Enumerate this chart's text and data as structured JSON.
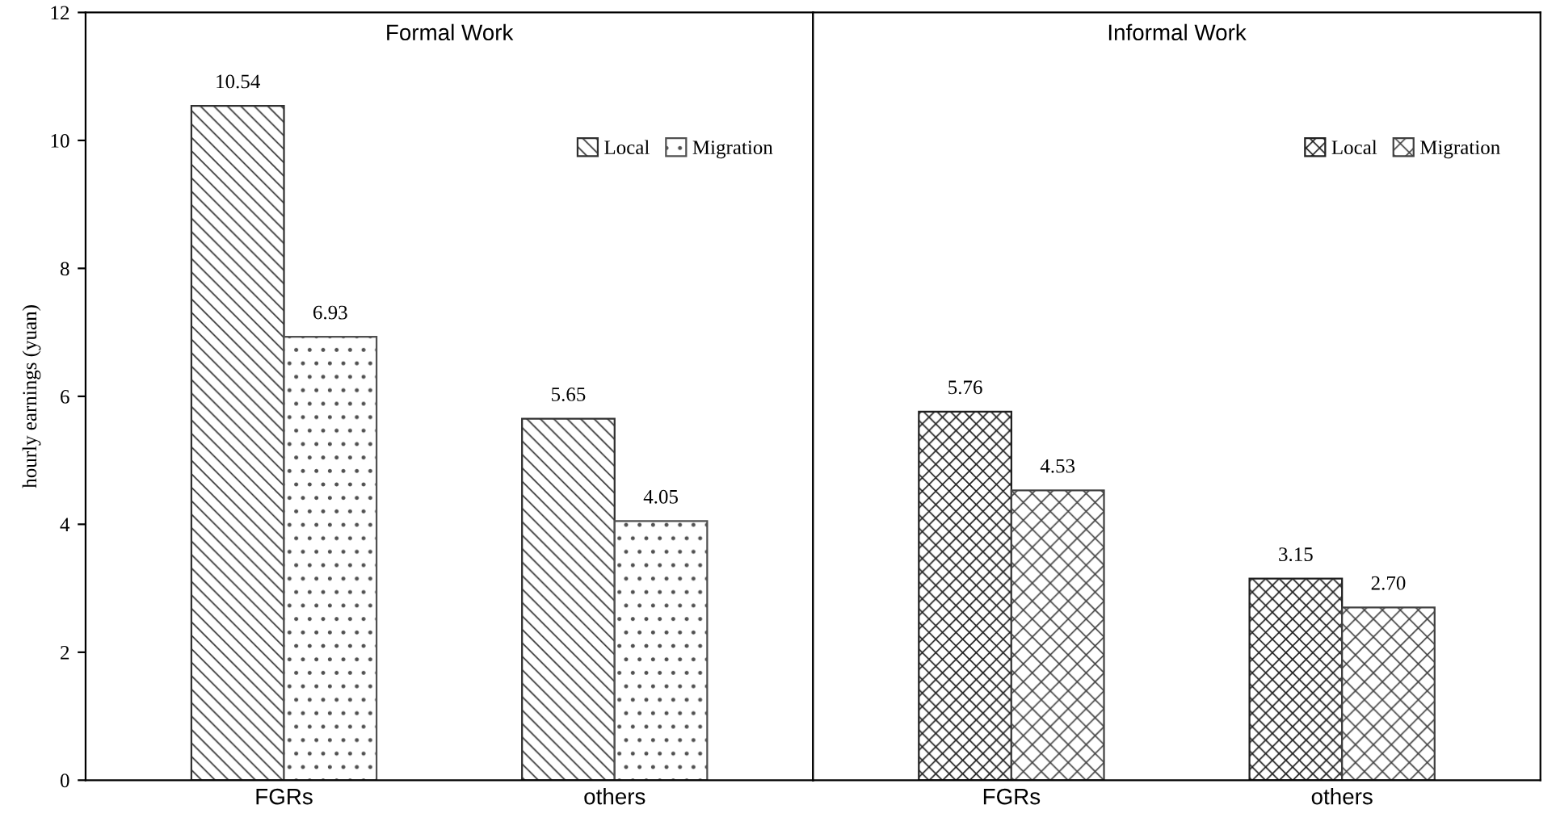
{
  "chart_data": [
    {
      "type": "bar",
      "title": "Formal Work",
      "ylabel": "hourly earnings (yuan)",
      "categories": [
        "FGRs",
        "others"
      ],
      "ylim": [
        0,
        12
      ],
      "yticks": [
        0,
        2,
        4,
        6,
        8,
        10,
        12
      ],
      "legend": "top right",
      "grid": false,
      "series": [
        {
          "name": "Local",
          "color": "#303030",
          "values": [
            10.54,
            5.65
          ],
          "value_labels": [
            "10.54",
            "5.65"
          ]
        },
        {
          "name": "Migration",
          "color": "#505050",
          "values": [
            6.93,
            4.05
          ],
          "value_labels": [
            "6.93",
            "4.05"
          ]
        }
      ]
    },
    {
      "type": "bar",
      "title": "Informal Work",
      "categories": [
        "FGRs",
        "others"
      ],
      "ylim": [
        0,
        12
      ],
      "yticks": [
        0,
        2,
        4,
        6,
        8,
        10,
        12
      ],
      "tick_labels": "x",
      "legend": "top right",
      "grid": false,
      "series": [
        {
          "name": "Local",
          "color": "#202020",
          "values": [
            5.76,
            3.15
          ],
          "value_labels": [
            "5.76",
            "3.15"
          ]
        },
        {
          "name": "Migration",
          "color": "#404040",
          "values": [
            4.53,
            2.7
          ],
          "value_labels": [
            "4.53",
            "2.70"
          ]
        }
      ]
    }
  ]
}
